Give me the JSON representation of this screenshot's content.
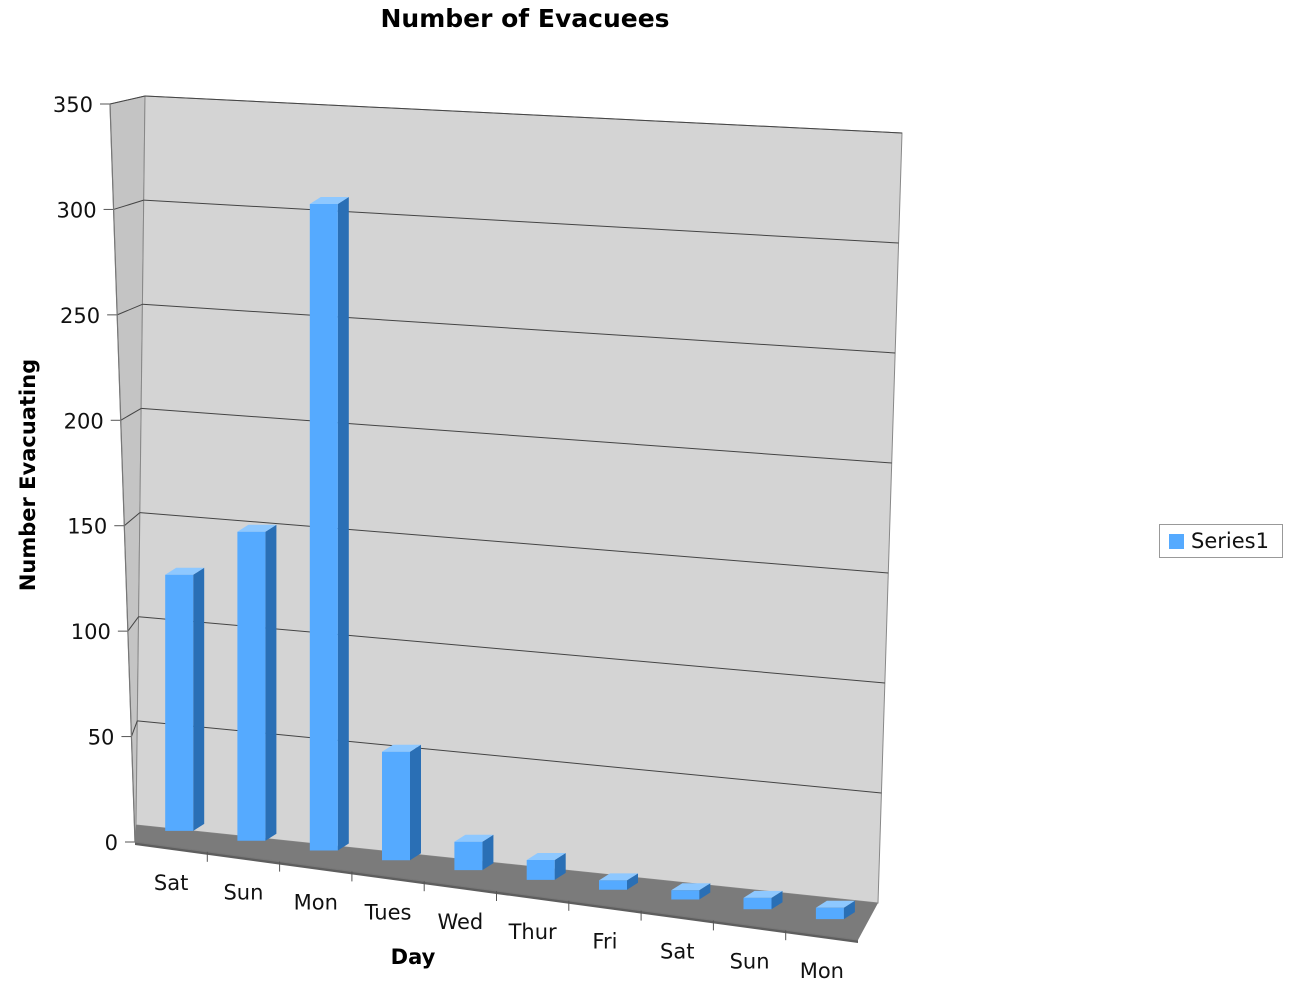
{
  "chart_data": {
    "type": "bar",
    "title": "Number of Evacuees",
    "xlabel": "Day",
    "ylabel": "Number Evacuating",
    "categories": [
      "Sat",
      "Sun",
      "Mon",
      "Tues",
      "Wed",
      "Thur",
      "Fri",
      "Sat",
      "Sun",
      "Mon"
    ],
    "series": [
      {
        "name": "Series1",
        "values": [
          120,
          145,
          305,
          50,
          12,
          8,
          3,
          3,
          4,
          4
        ]
      }
    ],
    "ylim": [
      0,
      350
    ],
    "yticks": [
      0,
      50,
      100,
      150,
      200,
      250,
      300,
      350
    ],
    "grid": true,
    "legend_position": "right",
    "three_d": true,
    "colors": {
      "bar_front": "#55aaff",
      "bar_side": "#2a6fb5",
      "bar_top": "#8ec8ff",
      "back_wall": "#d4d4d4",
      "side_wall": "#c4c4c4",
      "floor": "#7b7b7b",
      "floor_edge": "#5e5e5e",
      "gridline": "#444444"
    }
  },
  "legend": {
    "label": "Series1"
  }
}
